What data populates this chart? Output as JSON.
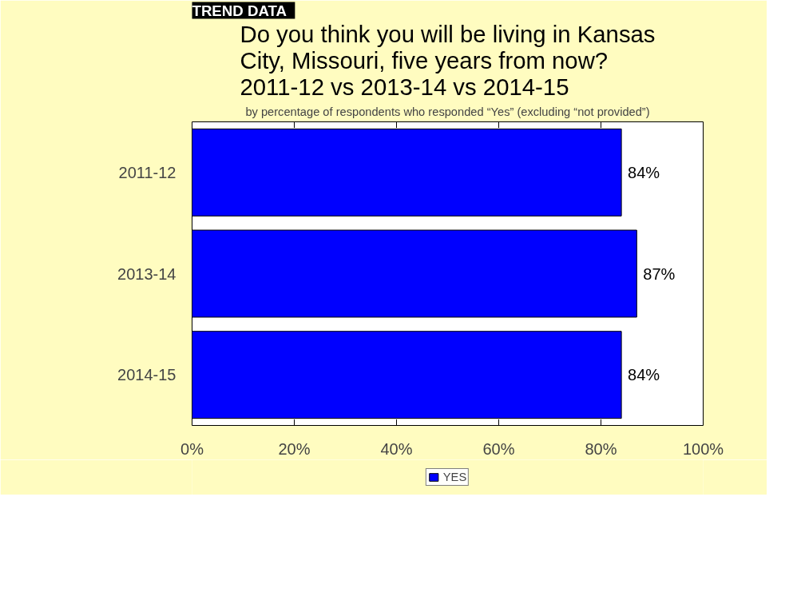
{
  "chart_data": {
    "type": "bar",
    "orientation": "horizontal",
    "title": "Do you think you will be living in Kansas City, Missouri, five years from now? 2011-12 vs 2013-14 vs 2014-15",
    "subtitle": "by percentage of respondents who responded “Yes” (excluding “not provided”)",
    "annotations": [
      "TREND DATA"
    ],
    "categories": [
      "2011-12",
      "2013-14",
      "2014-15"
    ],
    "series": [
      {
        "name": "YES",
        "color": "#0000ff",
        "values": [
          84,
          87,
          84
        ],
        "value_labels": [
          "84%",
          "87%",
          "84%"
        ]
      }
    ],
    "xlim": [
      0,
      100
    ],
    "xticks": [
      {
        "value": 0,
        "label": "0%"
      },
      {
        "value": 20,
        "label": "20%"
      },
      {
        "value": 40,
        "label": "40%"
      },
      {
        "value": 60,
        "label": "60%"
      },
      {
        "value": 80,
        "label": "80%"
      },
      {
        "value": 100,
        "label": "100%"
      }
    ],
    "grid": false,
    "legend": "bottom"
  }
}
